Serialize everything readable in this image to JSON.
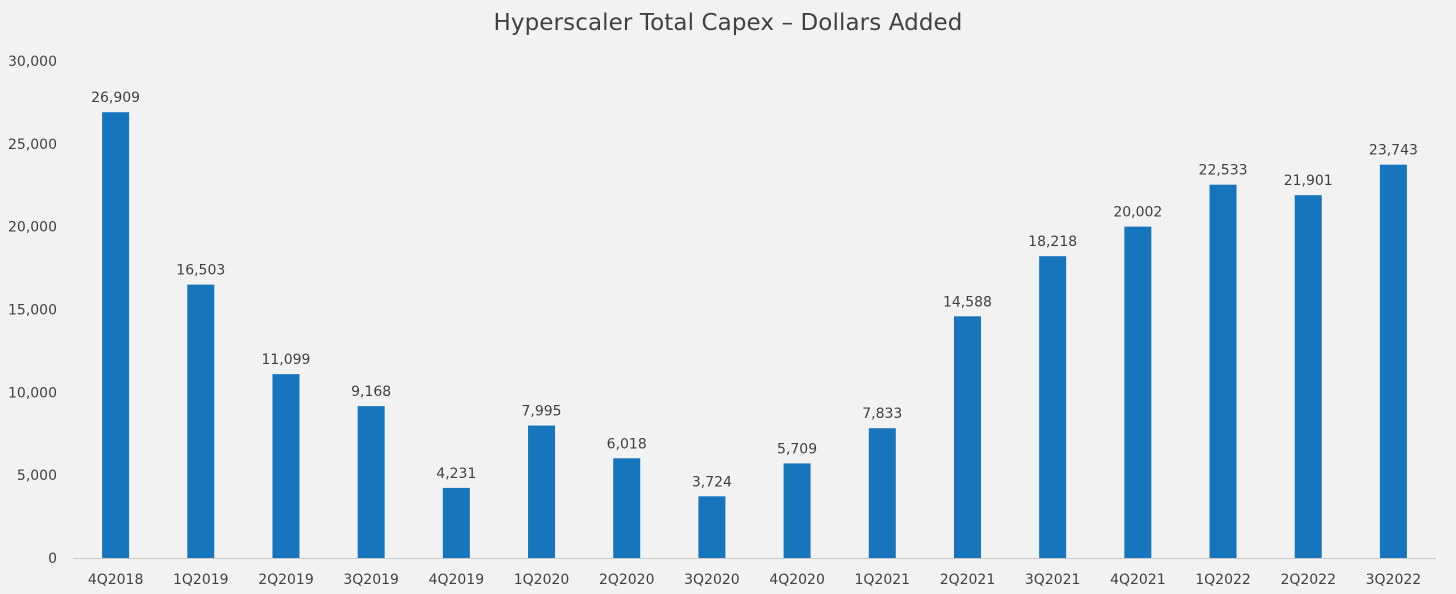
{
  "colors": {
    "background": "#f2f2f2",
    "bar": "#1675bd",
    "axis": "#c8c8c8",
    "text": "#404040"
  },
  "chart_data": {
    "type": "bar",
    "title": "Hyperscaler Total Capex – Dollars Added",
    "xlabel": "",
    "ylabel": "",
    "grid": false,
    "legend": "none",
    "ylim": [
      0,
      30000
    ],
    "yticks": [
      0,
      5000,
      10000,
      15000,
      20000,
      25000,
      30000
    ],
    "ytick_labels": [
      "0",
      "5,000",
      "10,000",
      "15,000",
      "20,000",
      "25,000",
      "30,000"
    ],
    "categories": [
      "4Q2018",
      "1Q2019",
      "2Q2019",
      "3Q2019",
      "4Q2019",
      "1Q2020",
      "2Q2020",
      "3Q2020",
      "4Q2020",
      "1Q2021",
      "2Q2021",
      "3Q2021",
      "4Q2021",
      "1Q2022",
      "2Q2022",
      "3Q2022"
    ],
    "values": [
      26909,
      16503,
      11099,
      9168,
      4231,
      7995,
      6018,
      3724,
      5709,
      7833,
      14588,
      18218,
      20002,
      22533,
      21901,
      23743
    ],
    "data_labels": [
      "26,909",
      "16,503",
      "11,099",
      "9,168",
      "4,231",
      "7,995",
      "6,018",
      "3,724",
      "5,709",
      "7,833",
      "14,588",
      "18,218",
      "20,002",
      "22,533",
      "21,901",
      "23,743"
    ]
  }
}
